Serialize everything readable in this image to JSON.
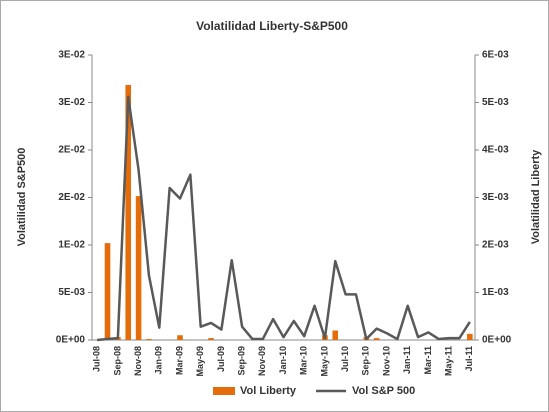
{
  "chart_data": {
    "type": "bar-line",
    "title": "Volatilidad Liberty-S&P500",
    "ylabel": "Volatilidad S&P500",
    "y2label": "Volatilidad Liberty",
    "categories": [
      "Jul-08",
      null,
      "Sep-08",
      null,
      "Nov-08",
      null,
      "Jan-09",
      null,
      "Mar-09",
      null,
      "May-09",
      null,
      "Jul-09",
      null,
      "Sep-09",
      null,
      "Nov-09",
      null,
      "Jan-10",
      null,
      "Mar-10",
      null,
      "May-10",
      null,
      "Jul-10",
      null,
      "Sep-10",
      null,
      "Nov-10",
      null,
      "Jan-11",
      null,
      "Mar-11",
      null,
      "May-11",
      null,
      "Jul-11"
    ],
    "series": [
      {
        "name": "Vol Liberty",
        "kind": "bar",
        "axis": "y2",
        "color": "#e46c0a",
        "values": [
          0,
          0.00204,
          6e-05,
          0.00537,
          0.00303,
          2e-05,
          0,
          0,
          0.0001,
          0,
          0,
          4e-05,
          0,
          0,
          0,
          0,
          0,
          0,
          0,
          0,
          0,
          0,
          0.0001,
          0.0002,
          0,
          0,
          6e-05,
          4e-05,
          0,
          0,
          0,
          0,
          0,
          0,
          0,
          0,
          0.00013
        ]
      },
      {
        "name": "Vol S&P 500",
        "kind": "line",
        "color": "#595959",
        "values": [
          0,
          0.0001,
          0.0002,
          0.0256,
          0.0179,
          0.0068,
          0.0013,
          0.016,
          0.0149,
          0.0174,
          0.0014,
          0.0018,
          0.0011,
          0.0084,
          0.0014,
          0.0001,
          0.0001,
          0.0022,
          0.0003,
          0.002,
          0.0004,
          0.0036,
          0.0002,
          0.0083,
          0.0048,
          0.0048,
          0.0001,
          0.0012,
          0.0007,
          0.0001,
          0.0036,
          0.0003,
          0.0008,
          0.0001,
          0.0002,
          0.0002,
          0.0019
        ]
      }
    ],
    "ylim": [
      0,
      0.03
    ],
    "yticks": [
      {
        "value": 0,
        "label": "0E+00"
      },
      {
        "value": 0.005,
        "label": "5E-03"
      },
      {
        "value": 0.01,
        "label": "1E-02"
      },
      {
        "value": 0.015,
        "label": "2E-02"
      },
      {
        "value": 0.02,
        "label": "2E-02"
      },
      {
        "value": 0.025,
        "label": "3E-02"
      },
      {
        "value": 0.03,
        "label": "3E-02"
      }
    ],
    "y2lim": [
      0,
      0.006
    ],
    "y2ticks": [
      {
        "value": 0,
        "label": "0E+00"
      },
      {
        "value": 0.001,
        "label": "1E-03"
      },
      {
        "value": 0.002,
        "label": "2E-03"
      },
      {
        "value": 0.003,
        "label": "3E-03"
      },
      {
        "value": 0.004,
        "label": "4E-03"
      },
      {
        "value": 0.005,
        "label": "5E-03"
      },
      {
        "value": 0.006,
        "label": "6E-03"
      }
    ],
    "grid": false,
    "legend": "bottom"
  }
}
